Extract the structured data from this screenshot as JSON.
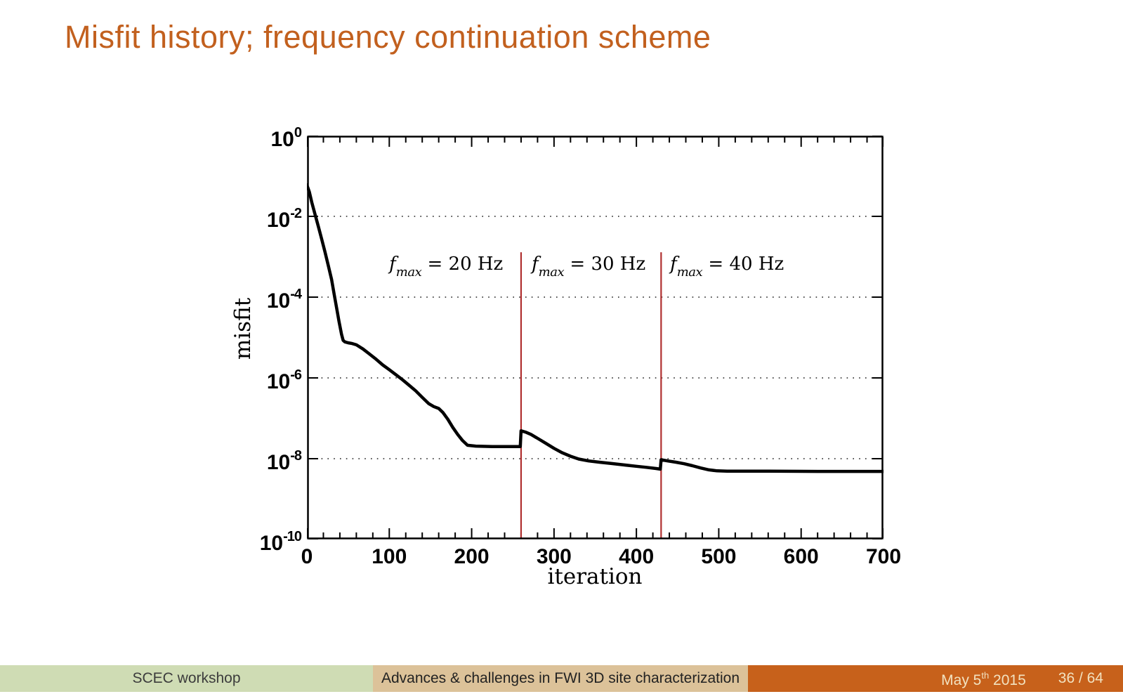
{
  "slide": {
    "title": "Misfit history; frequency continuation scheme"
  },
  "footer": {
    "left": "SCEC workshop",
    "middle": "Advances & challenges in FWI 3D site characterization",
    "date": {
      "pre": "May 5",
      "sup": "th",
      "post": " 2015"
    },
    "page": "36 / 64"
  },
  "colors": {
    "title": "#c2601e",
    "footer_left_bg": "#cfdcb4",
    "footer_left_text": "#3c3c3c",
    "footer_mid_bg": "#dcc299",
    "footer_mid_text": "#222222",
    "footer_right_bg": "#c7611b",
    "footer_right_text": "#f2e2c0",
    "vline": "#b03030",
    "curve": "#000000",
    "grid": "#1a1a1a"
  },
  "chart_data": {
    "type": "line",
    "xlabel": "iteration",
    "ylabel": "misfit",
    "xlim": [
      0,
      700
    ],
    "ylim": [
      1e-10,
      1
    ],
    "yscale": "log",
    "grid": "horizontal dotted",
    "legend": "none",
    "xticks": [
      0,
      100,
      200,
      300,
      400,
      500,
      600,
      700
    ],
    "xtick_minor_step": 20,
    "ytick_exponents": [
      0,
      -2,
      -4,
      -6,
      -8,
      -10
    ],
    "grid_exponents": [
      -2,
      -4,
      -6,
      -8
    ],
    "vlines": [
      {
        "x": 260,
        "top_exponent": -2.89
      },
      {
        "x": 430,
        "top_exponent": -2.89
      }
    ],
    "annotations": [
      {
        "text": "f_max = 20 Hz",
        "f": "f",
        "sub": "max",
        "rest": " = 20 Hz",
        "x": 169,
        "y_exponent": -3.22
      },
      {
        "text": "f_max = 30 Hz",
        "f": "f",
        "sub": "max",
        "rest": " = 30 Hz",
        "x": 342,
        "y_exponent": -3.22
      },
      {
        "text": "f_max = 40 Hz",
        "f": "f",
        "sub": "max",
        "rest": " = 40 Hz",
        "x": 510,
        "y_exponent": -3.22
      }
    ],
    "series": [
      {
        "name": "misfit",
        "points": [
          [
            0,
            0.06
          ],
          [
            3,
            0.04
          ],
          [
            6,
            0.022
          ],
          [
            10,
            0.011
          ],
          [
            14,
            0.0055
          ],
          [
            18,
            0.0027
          ],
          [
            22,
            0.0013
          ],
          [
            26,
            0.0006
          ],
          [
            30,
            0.00027
          ],
          [
            33,
            0.00012
          ],
          [
            36,
            5.5e-05
          ],
          [
            39,
            2.5e-05
          ],
          [
            42,
            1.2e-05
          ],
          [
            44,
            8.5e-06
          ],
          [
            46,
            7.8e-06
          ],
          [
            50,
            7.4e-06
          ],
          [
            55,
            7.1e-06
          ],
          [
            60,
            6.6e-06
          ],
          [
            68,
            5.2e-06
          ],
          [
            76,
            3.9e-06
          ],
          [
            84,
            2.9e-06
          ],
          [
            92,
            2.1e-06
          ],
          [
            100,
            1.6e-06
          ],
          [
            108,
            1.2e-06
          ],
          [
            116,
            9e-07
          ],
          [
            124,
            6.6e-07
          ],
          [
            132,
            4.8e-07
          ],
          [
            140,
            3.3e-07
          ],
          [
            148,
            2.3e-07
          ],
          [
            154,
            1.95e-07
          ],
          [
            160,
            1.75e-07
          ],
          [
            165,
            1.4e-07
          ],
          [
            171,
            9.5e-08
          ],
          [
            177,
            6e-08
          ],
          [
            183,
            4e-08
          ],
          [
            189,
            2.8e-08
          ],
          [
            195,
            2.15e-08
          ],
          [
            205,
            2.05e-08
          ],
          [
            225,
            2e-08
          ],
          [
            245,
            2e-08
          ],
          [
            259,
            2e-08
          ],
          [
            260,
            4.9e-08
          ],
          [
            266,
            4.5e-08
          ],
          [
            272,
            4e-08
          ],
          [
            280,
            3.2e-08
          ],
          [
            290,
            2.4e-08
          ],
          [
            300,
            1.8e-08
          ],
          [
            310,
            1.4e-08
          ],
          [
            320,
            1.15e-08
          ],
          [
            330,
            9.8e-09
          ],
          [
            342,
            8.8e-09
          ],
          [
            355,
            8.2e-09
          ],
          [
            370,
            7.6e-09
          ],
          [
            385,
            7e-09
          ],
          [
            400,
            6.5e-09
          ],
          [
            412,
            6.1e-09
          ],
          [
            424,
            5.7e-09
          ],
          [
            429,
            5.5e-09
          ],
          [
            430,
            9.4e-09
          ],
          [
            438,
            8.8e-09
          ],
          [
            448,
            8.2e-09
          ],
          [
            458,
            7.5e-09
          ],
          [
            468,
            6.7e-09
          ],
          [
            478,
            5.9e-09
          ],
          [
            488,
            5.3e-09
          ],
          [
            498,
            5e-09
          ],
          [
            510,
            4.9e-09
          ],
          [
            560,
            4.9e-09
          ],
          [
            620,
            4.85e-09
          ],
          [
            700,
            4.85e-09
          ]
        ]
      }
    ]
  }
}
